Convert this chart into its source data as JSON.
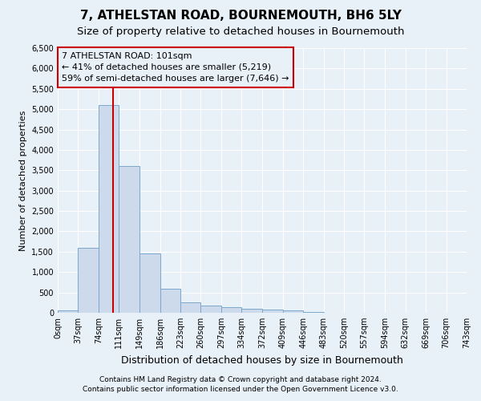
{
  "title": "7, ATHELSTAN ROAD, BOURNEMOUTH, BH6 5LY",
  "subtitle": "Size of property relative to detached houses in Bournemouth",
  "xlabel": "Distribution of detached houses by size in Bournemouth",
  "ylabel": "Number of detached properties",
  "footer_line1": "Contains HM Land Registry data © Crown copyright and database right 2024.",
  "footer_line2": "Contains public sector information licensed under the Open Government Licence v3.0.",
  "bin_edges": [
    0,
    37,
    74,
    111,
    149,
    186,
    223,
    260,
    297,
    334,
    372,
    409,
    446,
    483,
    520,
    557,
    594,
    632,
    669,
    706,
    743
  ],
  "bar_heights": [
    50,
    1600,
    5100,
    3600,
    1450,
    600,
    250,
    170,
    130,
    100,
    70,
    50,
    10,
    0,
    0,
    0,
    0,
    0,
    0,
    0
  ],
  "bar_color": "#ccdaeb",
  "bar_edge_color": "#7aa8cc",
  "property_line_x": 101,
  "property_line_color": "#cc0000",
  "annotation_text": "7 ATHELSTAN ROAD: 101sqm\n← 41% of detached houses are smaller (5,219)\n59% of semi-detached houses are larger (7,646) →",
  "annotation_box_color": "#cc0000",
  "ylim": [
    0,
    6500
  ],
  "yticks": [
    0,
    500,
    1000,
    1500,
    2000,
    2500,
    3000,
    3500,
    4000,
    4500,
    5000,
    5500,
    6000,
    6500
  ],
  "bg_color": "#e8f0f8",
  "grid_color": "#ffffff",
  "title_fontsize": 11,
  "subtitle_fontsize": 9.5,
  "ylabel_fontsize": 8,
  "xlabel_fontsize": 9,
  "tick_fontsize": 7,
  "footer_fontsize": 6.5,
  "annotation_fontsize": 8
}
